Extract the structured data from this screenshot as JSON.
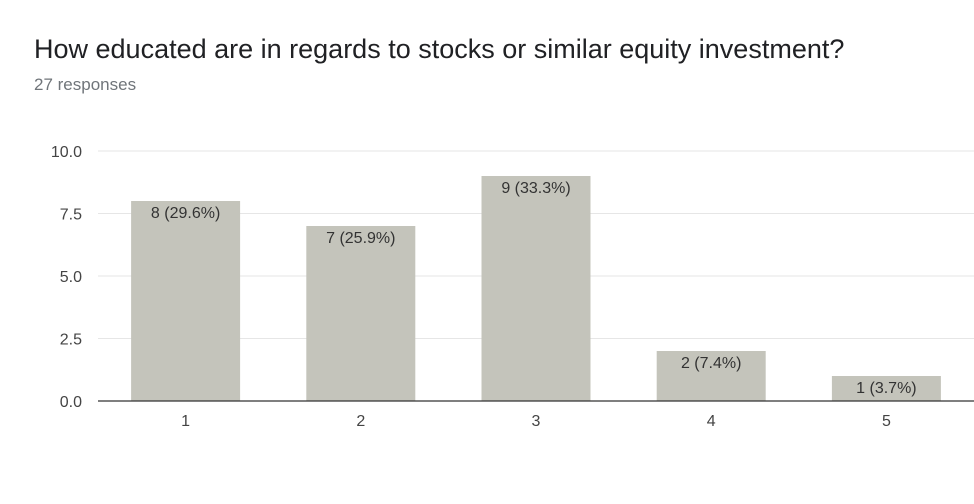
{
  "header": {
    "title": "How educated are in regards to stocks or similar equity investment?",
    "subtitle": "27 responses"
  },
  "colors": {
    "bar": "#c4c4bb",
    "grid": "#e6e6e6",
    "baseline": "#333333"
  },
  "chart_data": {
    "type": "bar",
    "title": "How educated are in regards to stocks or similar equity investment?",
    "subtitle": "27 responses",
    "xlabel": "",
    "ylabel": "",
    "categories": [
      "1",
      "2",
      "3",
      "4",
      "5"
    ],
    "values": [
      8,
      7,
      9,
      2,
      1
    ],
    "data_labels": [
      "8 (29.6%)",
      "7 (25.9%)",
      "9 (33.3%)",
      "2 (7.4%)",
      "1 (3.7%)"
    ],
    "ylim": [
      0,
      10
    ],
    "yticks": [
      "0.0",
      "2.5",
      "5.0",
      "7.5",
      "10.0"
    ],
    "grid": true,
    "legend": "none"
  }
}
